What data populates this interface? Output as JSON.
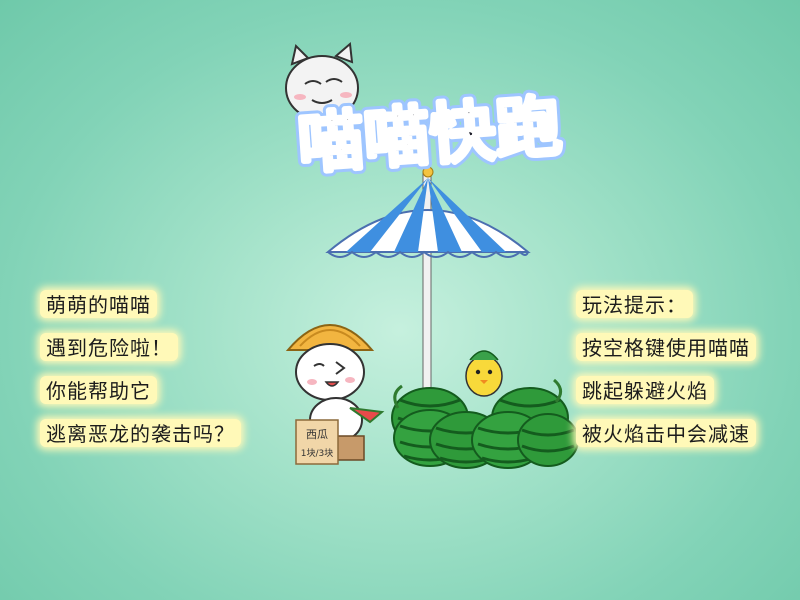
{
  "game": {
    "title": "喵喵快跑",
    "story_lines": [
      "萌萌的喵喵",
      "遇到危险啦！",
      "你能帮助它",
      "逃离恶龙的袭击吗？"
    ],
    "tips_lines": [
      "玩法提示：",
      "按空格键使用喵喵",
      "跳起躲避火焰",
      "被火焰击中会减速"
    ],
    "sign_lines": [
      "西瓜",
      "1块/3块"
    ]
  },
  "colors": {
    "background": "#8fd9bd",
    "title_fill": "#1e1e2a",
    "title_outline": "#ffffff",
    "title_glow": "#9ec5ff",
    "caption_highlight": "#fff9b8",
    "umbrella_blue": "#3f8fe0",
    "umbrella_white": "#ffffff",
    "watermelon_green": "#2f9a3a",
    "watermelon_stripe": "#145c1e",
    "hat_color": "#f2b540"
  },
  "icons": {
    "mascot": "cat-face-icon",
    "umbrella": "beach-umbrella-icon",
    "watermelons": "watermelon-icon",
    "chick": "chick-icon",
    "sign": "price-sign-icon"
  }
}
